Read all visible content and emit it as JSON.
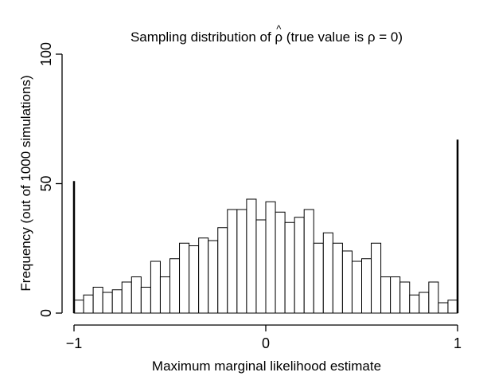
{
  "chart_data": {
    "type": "bar",
    "title_prefix": "Sampling distribution of ",
    "title_symbol": "ρ",
    "title_hat": "^",
    "title_suffix": "  (true value is ρ = 0)",
    "xlabel": "Maximum marginal likelihood estimate",
    "ylabel": "Frequency (out of 1000 simulations)",
    "xlim": [
      -1,
      1
    ],
    "ylim": [
      0,
      100
    ],
    "x_ticks": [
      -1,
      0,
      1
    ],
    "x_tick_labels": [
      "−1",
      "0",
      "1"
    ],
    "y_ticks": [
      0,
      50,
      100
    ],
    "y_tick_labels": [
      "0",
      "50",
      "100"
    ],
    "bin_width": 0.05,
    "bin_starts": [
      -1.0,
      -0.95,
      -0.9,
      -0.85,
      -0.8,
      -0.75,
      -0.7,
      -0.65,
      -0.6,
      -0.55,
      -0.5,
      -0.45,
      -0.4,
      -0.35,
      -0.3,
      -0.25,
      -0.2,
      -0.15,
      -0.1,
      -0.05,
      0.0,
      0.05,
      0.1,
      0.15,
      0.2,
      0.25,
      0.3,
      0.35,
      0.4,
      0.45,
      0.5,
      0.55,
      0.6,
      0.65,
      0.7,
      0.75,
      0.8,
      0.85,
      0.9,
      0.95
    ],
    "values": [
      5,
      7,
      10,
      8,
      9,
      12,
      14,
      10,
      20,
      14,
      21,
      27,
      26,
      29,
      28,
      33,
      40,
      40,
      44,
      36,
      43,
      39,
      35,
      37,
      40,
      27,
      31,
      27,
      24,
      20,
      21,
      27,
      14,
      14,
      12,
      7,
      8,
      12,
      4,
      5
    ],
    "point_masses": [
      {
        "x": -1,
        "value": 51
      },
      {
        "x": 1,
        "value": 67
      }
    ]
  }
}
